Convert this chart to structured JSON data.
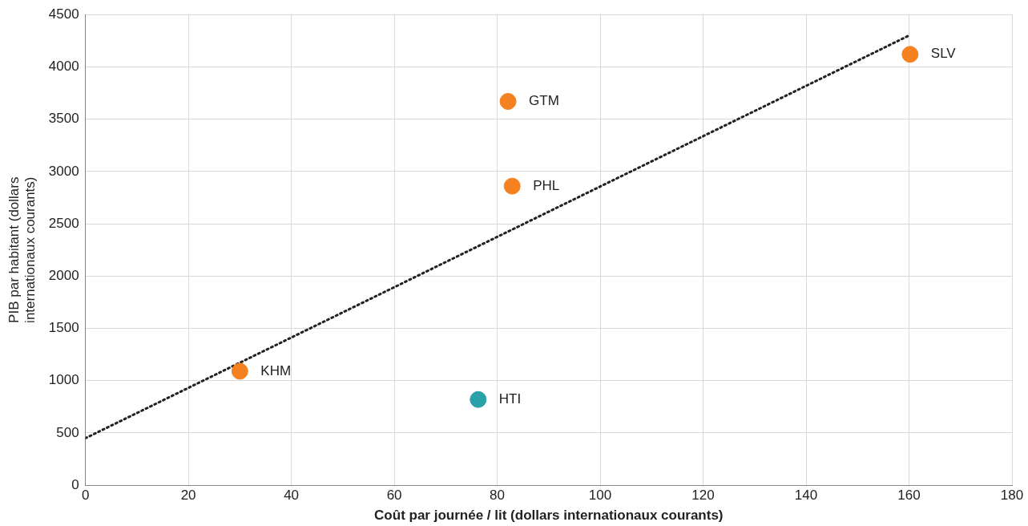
{
  "chart_data": {
    "type": "scatter",
    "xlabel": "Coût par journée / lit (dollars internationaux courants)",
    "ylabel": "PIB par habitant (dollars internationaux courants)",
    "xlim": [
      0,
      180
    ],
    "xticks": [
      0,
      20,
      40,
      60,
      80,
      100,
      120,
      140,
      160,
      180
    ],
    "ylim": [
      0,
      4500
    ],
    "yticks": [
      0,
      500,
      1000,
      1500,
      2000,
      2500,
      3000,
      3500,
      4000,
      4500
    ],
    "grid": true,
    "legend": false,
    "marker": "circle",
    "series": [
      {
        "color": "#f58220",
        "x": [
          30,
          82.1,
          82.9,
          160.2
        ],
        "values": [
          1090,
          3670,
          2860,
          4120
        ]
      },
      {
        "color": "#2aa0a8",
        "x": [
          76.3
        ],
        "values": [
          820
        ]
      },
      {
        "type": "line",
        "color": "#222222",
        "line_style": "dotted",
        "marker": "none",
        "x": [
          0,
          160
        ],
        "values": [
          450,
          4300
        ]
      }
    ],
    "annotations": [
      {
        "text": "KHM",
        "x": 30,
        "y": 1090
      },
      {
        "text": "HTI",
        "x": 76.3,
        "y": 820
      },
      {
        "text": "GTM",
        "x": 82.1,
        "y": 3670
      },
      {
        "text": "PHL",
        "x": 82.9,
        "y": 2860
      },
      {
        "text": "SLV",
        "x": 160.2,
        "y": 4120
      }
    ]
  }
}
